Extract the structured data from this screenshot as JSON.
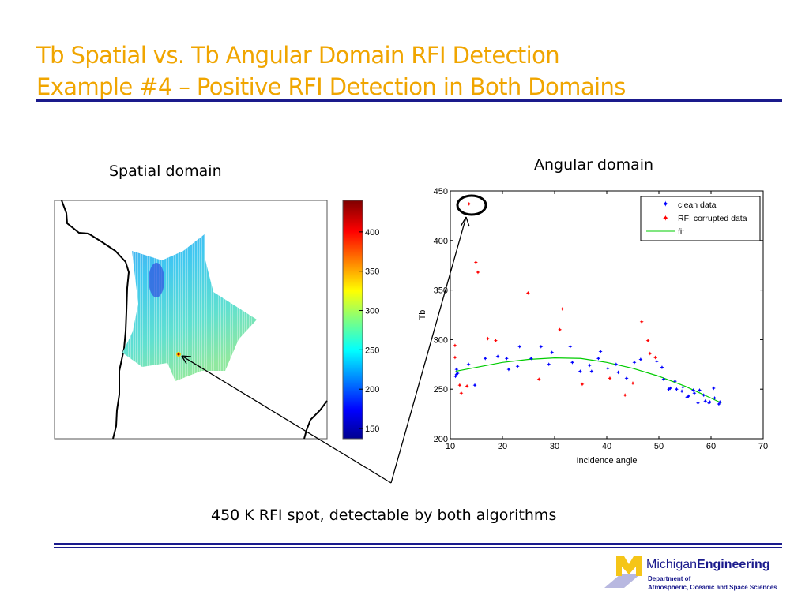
{
  "title": {
    "line1": "Tb Spatial vs. Tb Angular Domain RFI Detection",
    "line2": "Example #4 – Positive RFI Detection in Both Domains"
  },
  "spatial": {
    "label": "Spatial domain",
    "colorbar_ticks": [
      "150",
      "200",
      "250",
      "300",
      "350",
      "400"
    ]
  },
  "angular": {
    "label": "Angular domain"
  },
  "caption": "450 K RFI spot, detectable by both algorithms",
  "logo": {
    "name_light": "Michigan",
    "name_bold": "Engineering",
    "dept1": "Department of",
    "dept2": "Atmospheric, Oceanic and Space Sciences"
  },
  "colors": {
    "title": "#F0A500",
    "rule": "#1a1a8c",
    "clean": "#0000ff",
    "rfi": "#ff0000",
    "fit": "#00cc00"
  },
  "chart_data": {
    "type": "scatter",
    "xlabel": "Incidence angle",
    "ylabel": "Tb",
    "xlim": [
      10,
      70
    ],
    "ylim": [
      200,
      450
    ],
    "xticks": [
      10,
      20,
      30,
      40,
      50,
      60,
      70
    ],
    "yticks": [
      200,
      250,
      300,
      350,
      400,
      450
    ],
    "legend_position": "top-right",
    "series": [
      {
        "name": "clean data",
        "points": [
          [
            11.0,
            263
          ],
          [
            11.2,
            265
          ],
          [
            11.4,
            266
          ],
          [
            11.2,
            270
          ],
          [
            13.5,
            275
          ],
          [
            14.7,
            254
          ],
          [
            16.7,
            281
          ],
          [
            19.1,
            283
          ],
          [
            20.8,
            281
          ],
          [
            21.2,
            270
          ],
          [
            22.9,
            273
          ],
          [
            23.3,
            293
          ],
          [
            25.5,
            281
          ],
          [
            27.4,
            293
          ],
          [
            28.9,
            275
          ],
          [
            29.5,
            287
          ],
          [
            33.0,
            293
          ],
          [
            33.4,
            277
          ],
          [
            34.9,
            268
          ],
          [
            36.7,
            274
          ],
          [
            37.1,
            268
          ],
          [
            38.4,
            281
          ],
          [
            38.8,
            288
          ],
          [
            40.2,
            271
          ],
          [
            41.8,
            275
          ],
          [
            42.2,
            267
          ],
          [
            43.8,
            261
          ],
          [
            45.3,
            277
          ],
          [
            46.5,
            280
          ],
          [
            49.6,
            278
          ],
          [
            50.6,
            272
          ],
          [
            50.9,
            260
          ],
          [
            51.9,
            250
          ],
          [
            52.2,
            251
          ],
          [
            53.1,
            258
          ],
          [
            53.4,
            250
          ],
          [
            54.4,
            248
          ],
          [
            54.6,
            252
          ],
          [
            55.4,
            242
          ],
          [
            55.7,
            243
          ],
          [
            56.6,
            249
          ],
          [
            56.8,
            246
          ],
          [
            57.5,
            236
          ],
          [
            57.8,
            249
          ],
          [
            58.6,
            244
          ],
          [
            58.9,
            238
          ],
          [
            59.6,
            236
          ],
          [
            59.8,
            237
          ],
          [
            60.5,
            251
          ],
          [
            60.7,
            241
          ],
          [
            61.5,
            235
          ],
          [
            61.7,
            237
          ]
        ]
      },
      {
        "name": "RFI corrupted data",
        "points": [
          [
            13.6,
            437
          ],
          [
            10.9,
            294
          ],
          [
            10.9,
            282
          ],
          [
            11.8,
            254
          ],
          [
            12.1,
            246
          ],
          [
            13.2,
            253
          ],
          [
            14.9,
            378
          ],
          [
            15.3,
            368
          ],
          [
            17.2,
            301
          ],
          [
            18.7,
            299
          ],
          [
            24.9,
            347
          ],
          [
            27.0,
            260
          ],
          [
            31.0,
            310
          ],
          [
            31.5,
            331
          ],
          [
            35.3,
            255
          ],
          [
            40.6,
            261
          ],
          [
            43.5,
            244
          ],
          [
            45.0,
            256
          ],
          [
            46.7,
            318
          ],
          [
            47.9,
            299
          ],
          [
            48.3,
            286
          ],
          [
            49.3,
            282
          ]
        ]
      },
      {
        "name": "fit",
        "points": [
          [
            11,
            268
          ],
          [
            15,
            272
          ],
          [
            20,
            277
          ],
          [
            25,
            280
          ],
          [
            30,
            281.5
          ],
          [
            35,
            281
          ],
          [
            40,
            277
          ],
          [
            45,
            271
          ],
          [
            50,
            263
          ],
          [
            55,
            253
          ],
          [
            60,
            241
          ],
          [
            62,
            236
          ]
        ]
      }
    ]
  }
}
